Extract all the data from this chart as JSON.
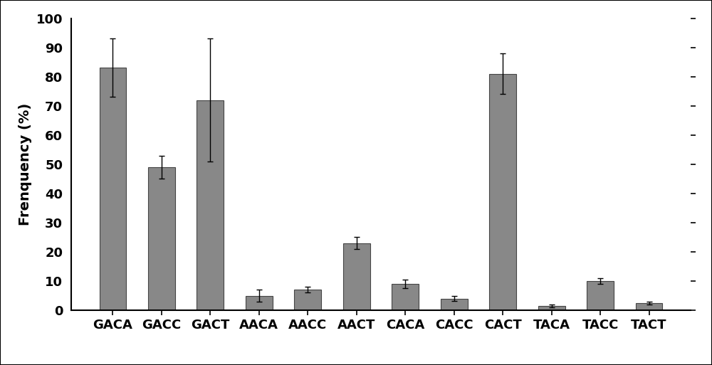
{
  "categories": [
    "GACA",
    "GACC",
    "GACT",
    "AACA",
    "AACC",
    "AACT",
    "CACA",
    "CACC",
    "CACT",
    "TACA",
    "TACC",
    "TACT"
  ],
  "values": [
    83,
    49,
    72,
    5,
    7,
    23,
    9,
    4,
    81,
    1.5,
    10,
    2.5
  ],
  "errors": [
    10,
    4,
    21,
    2,
    1,
    2,
    1.5,
    0.8,
    7,
    0.5,
    1,
    0.5
  ],
  "bar_color": "#888888",
  "bar_edgecolor": "#444444",
  "ylabel": "Frenquency (%)",
  "ylim": [
    0,
    100
  ],
  "yticks": [
    0,
    10,
    20,
    30,
    40,
    50,
    60,
    70,
    80,
    90,
    100
  ],
  "background_color": "#ffffff",
  "bar_width": 0.55,
  "capsize": 3,
  "ecolor": "#000000",
  "elinewidth": 1.0,
  "ylabel_fontsize": 14,
  "tick_fontsize": 13,
  "figsize": [
    10.0,
    5.13
  ],
  "dpi": 100
}
